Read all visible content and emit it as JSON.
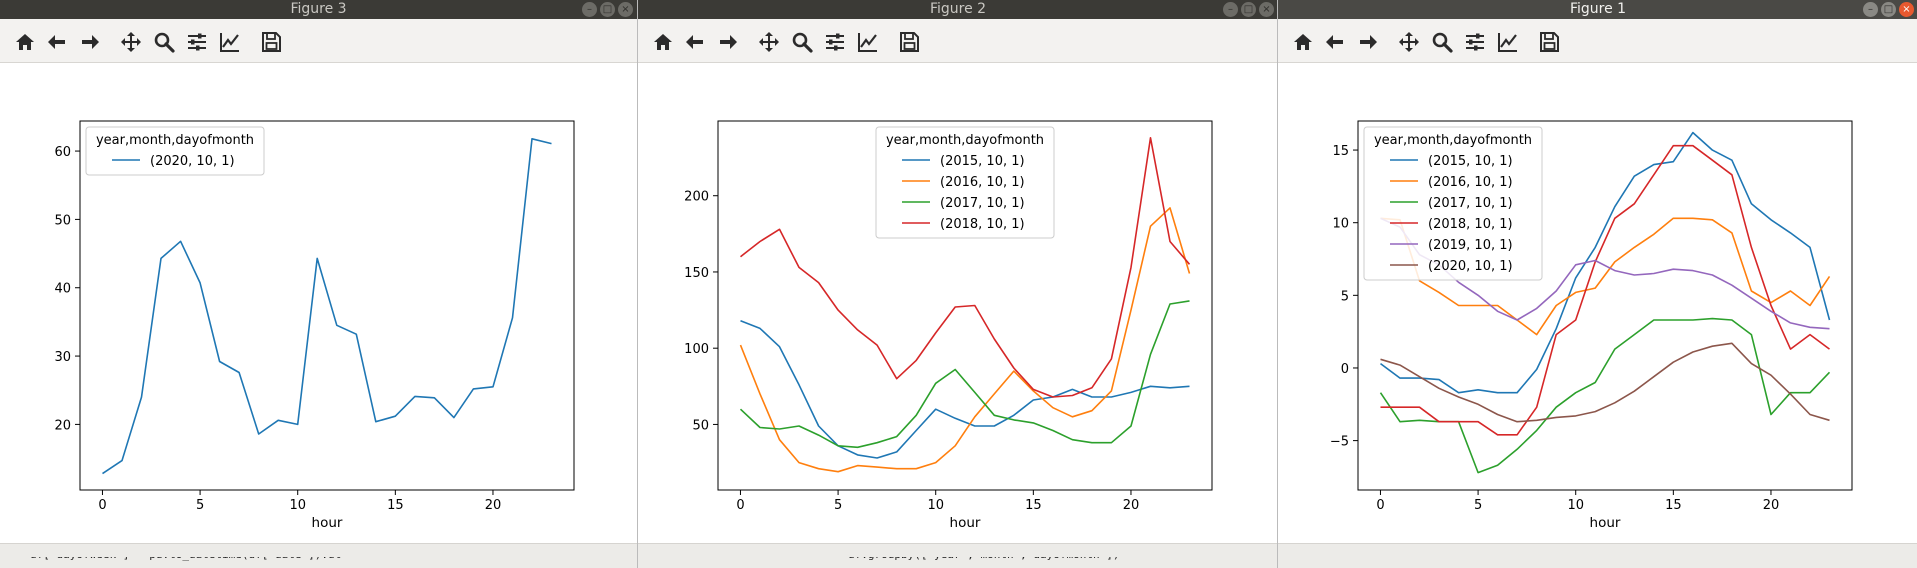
{
  "windows": [
    {
      "id": "fig3",
      "title": "Figure 3",
      "active": false
    },
    {
      "id": "fig2",
      "title": "Figure 2",
      "active": false
    },
    {
      "id": "fig1",
      "title": "Figure 1",
      "active": true
    }
  ],
  "toolbar_icons": [
    "home-icon",
    "back-icon",
    "forward-icon",
    "pan-icon",
    "zoom-icon",
    "configure-subplots-icon",
    "edit-axis-icon",
    "save-icon"
  ],
  "window_buttons": [
    "minimize-icon",
    "maximize-icon",
    "close-icon"
  ],
  "colors": {
    "C0": "#1f77b4",
    "C1": "#ff7f0e",
    "C2": "#2ca02c",
    "C3": "#d62728",
    "C4": "#9467bd",
    "C5": "#8c564b"
  },
  "terminal_fragments": [
    "df['dayofweek'] = pd.to_datetime(df['date']).dt",
    "df.groupby(['year','month','dayofmonth'])"
  ],
  "chart_data": [
    {
      "window": "fig3",
      "type": "line",
      "xlabel": "hour",
      "ylabel": "",
      "legend_title": "year,month,dayofmonth",
      "legend_position": "top-left",
      "xlim": [
        -1.15,
        24.15
      ],
      "ylim": [
        10.4,
        64.4
      ],
      "xticks": [
        0,
        5,
        10,
        15,
        20
      ],
      "yticks": [
        20,
        30,
        40,
        50,
        60
      ],
      "x": [
        0,
        1,
        2,
        3,
        4,
        5,
        6,
        7,
        8,
        9,
        10,
        11,
        12,
        13,
        14,
        15,
        16,
        17,
        18,
        19,
        20,
        21,
        22,
        23
      ],
      "series": [
        {
          "name": "(2020, 10, 1)",
          "color": "#1f77b4",
          "values": [
            12.8,
            14.7,
            24.0,
            44.3,
            46.8,
            40.7,
            29.2,
            27.6,
            18.6,
            20.6,
            20.0,
            44.3,
            34.5,
            33.2,
            20.4,
            21.2,
            24.1,
            23.9,
            21.0,
            25.2,
            25.5,
            35.6,
            61.8,
            61.1
          ]
        }
      ]
    },
    {
      "window": "fig2",
      "type": "line",
      "xlabel": "hour",
      "ylabel": "",
      "legend_title": "year,month,dayofmonth",
      "legend_position": "top-center",
      "xlim": [
        -1.15,
        24.15
      ],
      "ylim": [
        7,
        249
      ],
      "xticks": [
        0,
        5,
        10,
        15,
        20
      ],
      "yticks": [
        50,
        100,
        150,
        200
      ],
      "x": [
        0,
        1,
        2,
        3,
        4,
        5,
        6,
        7,
        8,
        9,
        10,
        11,
        12,
        13,
        14,
        15,
        16,
        17,
        18,
        19,
        20,
        21,
        22,
        23
      ],
      "series": [
        {
          "name": "(2015, 10, 1)",
          "color": "#1f77b4",
          "values": [
            118,
            113,
            101,
            76,
            49,
            36,
            30,
            28,
            32,
            46,
            60,
            54,
            49,
            49,
            56,
            66,
            68,
            73,
            68,
            68,
            71,
            75,
            74,
            75
          ]
        },
        {
          "name": "(2016, 10, 1)",
          "color": "#ff7f0e",
          "values": [
            102,
            70,
            40,
            25,
            21,
            19,
            23,
            22,
            21,
            21,
            25,
            36,
            55,
            70,
            85,
            72,
            61,
            55,
            59,
            72,
            125,
            180,
            192,
            149
          ]
        },
        {
          "name": "(2017, 10, 1)",
          "color": "#2ca02c",
          "values": [
            60,
            48,
            47,
            49,
            43,
            36,
            35,
            38,
            42,
            56,
            77,
            86,
            71,
            56,
            53,
            51,
            46,
            40,
            38,
            38,
            49,
            96,
            129,
            131
          ]
        },
        {
          "name": "(2018, 10, 1)",
          "color": "#d62728",
          "values": [
            160,
            170,
            178,
            153,
            143,
            125,
            112,
            102,
            80,
            92,
            110,
            127,
            128,
            106,
            87,
            73,
            68,
            69,
            74,
            93,
            153,
            238,
            170,
            155
          ]
        }
      ]
    },
    {
      "window": "fig1",
      "type": "line",
      "xlabel": "hour",
      "ylabel": "",
      "legend_title": "year,month,dayofmonth",
      "legend_position": "top-left",
      "xlim": [
        -1.15,
        24.15
      ],
      "ylim": [
        -8.4,
        17.0
      ],
      "xticks": [
        0,
        5,
        10,
        15,
        20
      ],
      "yticks": [
        -5,
        0,
        5,
        10,
        15
      ],
      "x": [
        0,
        1,
        2,
        3,
        4,
        5,
        6,
        7,
        8,
        9,
        10,
        11,
        12,
        13,
        14,
        15,
        16,
        17,
        18,
        19,
        20,
        21,
        22,
        23
      ],
      "series": [
        {
          "name": "(2015, 10, 1)",
          "color": "#1f77b4",
          "values": [
            0.3,
            -0.7,
            -0.7,
            -0.8,
            -1.7,
            -1.5,
            -1.7,
            -1.7,
            -0.1,
            2.7,
            6.2,
            8.3,
            11.1,
            13.2,
            14.0,
            14.2,
            16.2,
            15.0,
            14.3,
            11.3,
            10.2,
            9.3,
            8.3,
            3.3
          ]
        },
        {
          "name": "(2016, 10, 1)",
          "color": "#ff7f0e",
          "values": [
            10.3,
            10.2,
            6.0,
            5.2,
            4.3,
            4.3,
            4.3,
            3.3,
            2.3,
            4.3,
            5.2,
            5.5,
            7.3,
            8.3,
            9.2,
            10.3,
            10.3,
            10.2,
            9.3,
            5.3,
            4.5,
            5.3,
            4.3,
            6.3
          ]
        },
        {
          "name": "(2017, 10, 1)",
          "color": "#2ca02c",
          "values": [
            -1.7,
            -3.7,
            -3.6,
            -3.7,
            -3.7,
            -7.2,
            -6.7,
            -5.6,
            -4.3,
            -2.7,
            -1.7,
            -1.0,
            1.3,
            2.3,
            3.3,
            3.3,
            3.3,
            3.4,
            3.3,
            2.3,
            -3.2,
            -1.7,
            -1.7,
            -0.3
          ]
        },
        {
          "name": "(2018, 10, 1)",
          "color": "#d62728",
          "values": [
            -2.7,
            -2.7,
            -2.7,
            -3.7,
            -3.7,
            -3.7,
            -4.6,
            -4.6,
            -2.7,
            2.3,
            3.3,
            7.3,
            10.3,
            11.3,
            13.3,
            15.3,
            15.3,
            14.3,
            13.3,
            8.3,
            4.3,
            1.3,
            2.3,
            1.3
          ]
        },
        {
          "name": "(2019, 10, 1)",
          "color": "#9467bd",
          "values": [
            10.3,
            9.7,
            7.8,
            7.1,
            5.9,
            5.0,
            3.9,
            3.3,
            4.1,
            5.3,
            7.1,
            7.4,
            6.7,
            6.4,
            6.5,
            6.8,
            6.7,
            6.4,
            5.7,
            4.8,
            3.9,
            3.1,
            2.8,
            2.7
          ]
        },
        {
          "name": "(2020, 10, 1)",
          "color": "#8c564b",
          "values": [
            0.6,
            0.2,
            -0.6,
            -1.4,
            -2.0,
            -2.5,
            -3.2,
            -3.7,
            -3.6,
            -3.4,
            -3.3,
            -3.0,
            -2.4,
            -1.6,
            -0.6,
            0.4,
            1.1,
            1.5,
            1.7,
            0.3,
            -0.5,
            -1.8,
            -3.2,
            -3.6
          ]
        }
      ]
    }
  ]
}
